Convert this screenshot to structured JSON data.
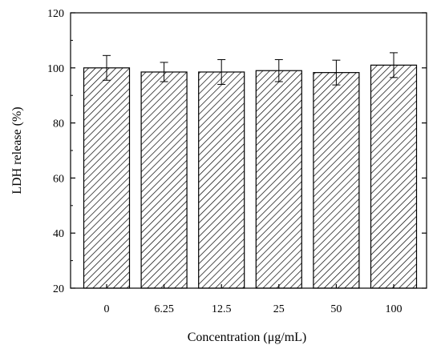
{
  "chart_data": {
    "type": "bar",
    "title": "",
    "xlabel": "Concentration (μg/mL)",
    "ylabel": "LDH release (%)",
    "categories": [
      "0",
      "6.25",
      "12.5",
      "25",
      "50",
      "100"
    ],
    "values": [
      100.0,
      98.5,
      98.5,
      99.0,
      98.3,
      101.0
    ],
    "errors": [
      4.5,
      3.5,
      4.5,
      4.0,
      4.5,
      4.5
    ],
    "ylim": [
      20,
      120
    ],
    "yticks": [
      20,
      40,
      60,
      80,
      100,
      120
    ],
    "ytick_labels": [
      "20",
      "40",
      "60",
      "80",
      "100",
      "120"
    ],
    "grid": false,
    "legend": "none",
    "bar_pattern": "diagonal-hatch",
    "bar_color": "#000000"
  }
}
